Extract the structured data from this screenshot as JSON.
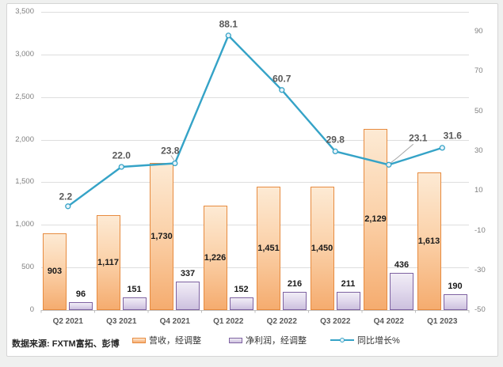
{
  "source_note": "数据来源: FXTM富拓、彭博",
  "chart_data": {
    "type": "bar+line combo, dual axis, grid on, legend bottom",
    "categories": [
      "Q2 2021",
      "Q3 2021",
      "Q4 2021",
      "Q1 2022",
      "Q2 2022",
      "Q3 2022",
      "Q4 2022",
      "Q1 2023"
    ],
    "series": [
      {
        "name": "营收，经调整",
        "type": "bar",
        "axis": "left",
        "values": [
          903,
          1117,
          1730,
          1226,
          1451,
          1450,
          2129,
          1613
        ],
        "value_labels": [
          "903",
          "1,117",
          "1,730",
          "1,226",
          "1,451",
          "1,450",
          "2,129",
          "1,613"
        ],
        "border_color": "#e78b3f",
        "fill_top": "#fdead4",
        "fill_bottom": "#f5ac6f"
      },
      {
        "name": "净利润，经调整",
        "type": "bar",
        "axis": "left",
        "values": [
          96,
          151,
          337,
          152,
          216,
          211,
          436,
          190
        ],
        "value_labels": [
          "96",
          "151",
          "337",
          "152",
          "216",
          "211",
          "436",
          "190"
        ],
        "border_color": "#7e62a1",
        "fill_top": "#f1edf6",
        "fill_bottom": "#ccc0de"
      },
      {
        "name": "同比增长%",
        "type": "line",
        "axis": "right",
        "values": [
          2.2,
          22.0,
          23.8,
          88.1,
          60.7,
          29.8,
          23.1,
          31.6
        ],
        "value_labels": [
          "2.2",
          "22.0",
          "23.8",
          "88.1",
          "60.7",
          "29.8",
          "23.1",
          "31.6"
        ],
        "line_color": "#35a3c7",
        "marker_fill": "#e9f3f9"
      }
    ],
    "left_axis": {
      "min": 0,
      "max": 3500,
      "step": 500,
      "tick_labels_top_to_bottom": [
        "3,500",
        "3,000",
        "2,500",
        "2,000",
        "1,500",
        "1,000",
        "500",
        "0"
      ]
    },
    "right_axis": {
      "min": -50,
      "max": 100,
      "step": 20,
      "tick_values": [
        90,
        70,
        50,
        30,
        10,
        -10,
        -30,
        -50
      ],
      "tick_labels": [
        "90",
        "70",
        "50",
        "30",
        "10",
        "-10",
        "-30",
        "-50"
      ]
    }
  }
}
